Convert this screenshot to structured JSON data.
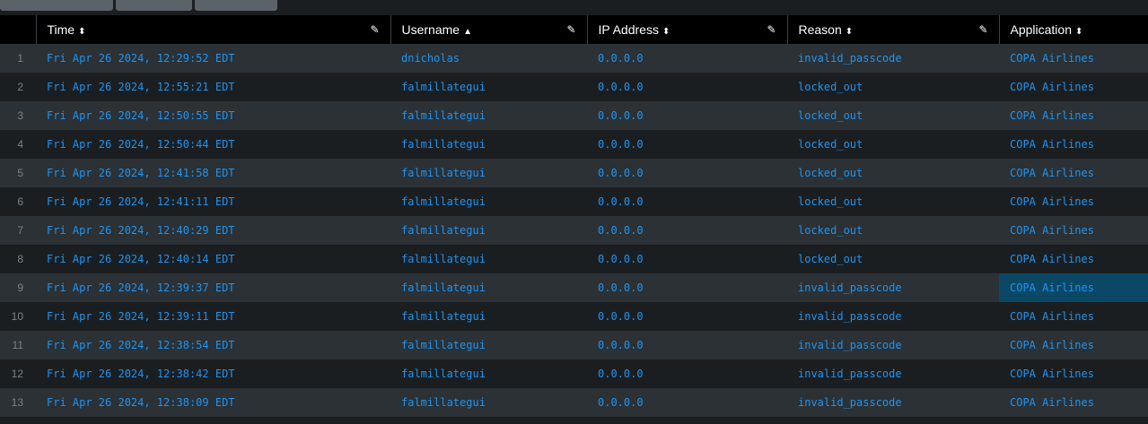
{
  "columns": [
    {
      "label": "",
      "sort": ""
    },
    {
      "label": "Time",
      "sort": "sort-both",
      "editable": true
    },
    {
      "label": "Username",
      "sort": "sort-asc",
      "editable": true
    },
    {
      "label": "IP Address",
      "sort": "sort-both",
      "editable": true
    },
    {
      "label": "Reason",
      "sort": "sort-both",
      "editable": true
    },
    {
      "label": "Application",
      "sort": "sort-both",
      "editable": false
    }
  ],
  "sort_icons": {
    "sort-both": "⬍",
    "sort-asc": "▲"
  },
  "selected_cell": {
    "row": 9,
    "column": "Application"
  },
  "rows": [
    [
      "1",
      "Fri Apr 26 2024, 12:29:52 EDT",
      "dnicholas",
      "0.0.0.0",
      "invalid_passcode",
      "COPA Airlines"
    ],
    [
      "2",
      "Fri Apr 26 2024, 12:55:21 EDT",
      "falmillategui",
      "0.0.0.0",
      "locked_out",
      "COPA Airlines"
    ],
    [
      "3",
      "Fri Apr 26 2024, 12:50:55 EDT",
      "falmillategui",
      "0.0.0.0",
      "locked_out",
      "COPA Airlines"
    ],
    [
      "4",
      "Fri Apr 26 2024, 12:50:44 EDT",
      "falmillategui",
      "0.0.0.0",
      "locked_out",
      "COPA Airlines"
    ],
    [
      "5",
      "Fri Apr 26 2024, 12:41:58 EDT",
      "falmillategui",
      "0.0.0.0",
      "locked_out",
      "COPA Airlines"
    ],
    [
      "6",
      "Fri Apr 26 2024, 12:41:11 EDT",
      "falmillategui",
      "0.0.0.0",
      "locked_out",
      "COPA Airlines"
    ],
    [
      "7",
      "Fri Apr 26 2024, 12:40:29 EDT",
      "falmillategui",
      "0.0.0.0",
      "locked_out",
      "COPA Airlines"
    ],
    [
      "8",
      "Fri Apr 26 2024, 12:40:14 EDT",
      "falmillategui",
      "0.0.0.0",
      "locked_out",
      "COPA Airlines"
    ],
    [
      "9",
      "Fri Apr 26 2024, 12:39:37 EDT",
      "falmillategui",
      "0.0.0.0",
      "invalid_passcode",
      "COPA Airlines"
    ],
    [
      "10",
      "Fri Apr 26 2024, 12:39:11 EDT",
      "falmillategui",
      "0.0.0.0",
      "invalid_passcode",
      "COPA Airlines"
    ],
    [
      "11",
      "Fri Apr 26 2024, 12:38:54 EDT",
      "falmillategui",
      "0.0.0.0",
      "invalid_passcode",
      "COPA Airlines"
    ],
    [
      "12",
      "Fri Apr 26 2024, 12:38:42 EDT",
      "falmillategui",
      "0.0.0.0",
      "invalid_passcode",
      "COPA Airlines"
    ],
    [
      "13",
      "Fri Apr 26 2024, 12:38:09 EDT",
      "falmillategui",
      "0.0.0.0",
      "invalid_passcode",
      "COPA Airlines"
    ]
  ],
  "colors": {
    "link": "#1e93f0",
    "header_bg": "#000000",
    "row_odd": "#2c3135",
    "row_even": "#1b1e21",
    "selected": "#0b4866"
  }
}
